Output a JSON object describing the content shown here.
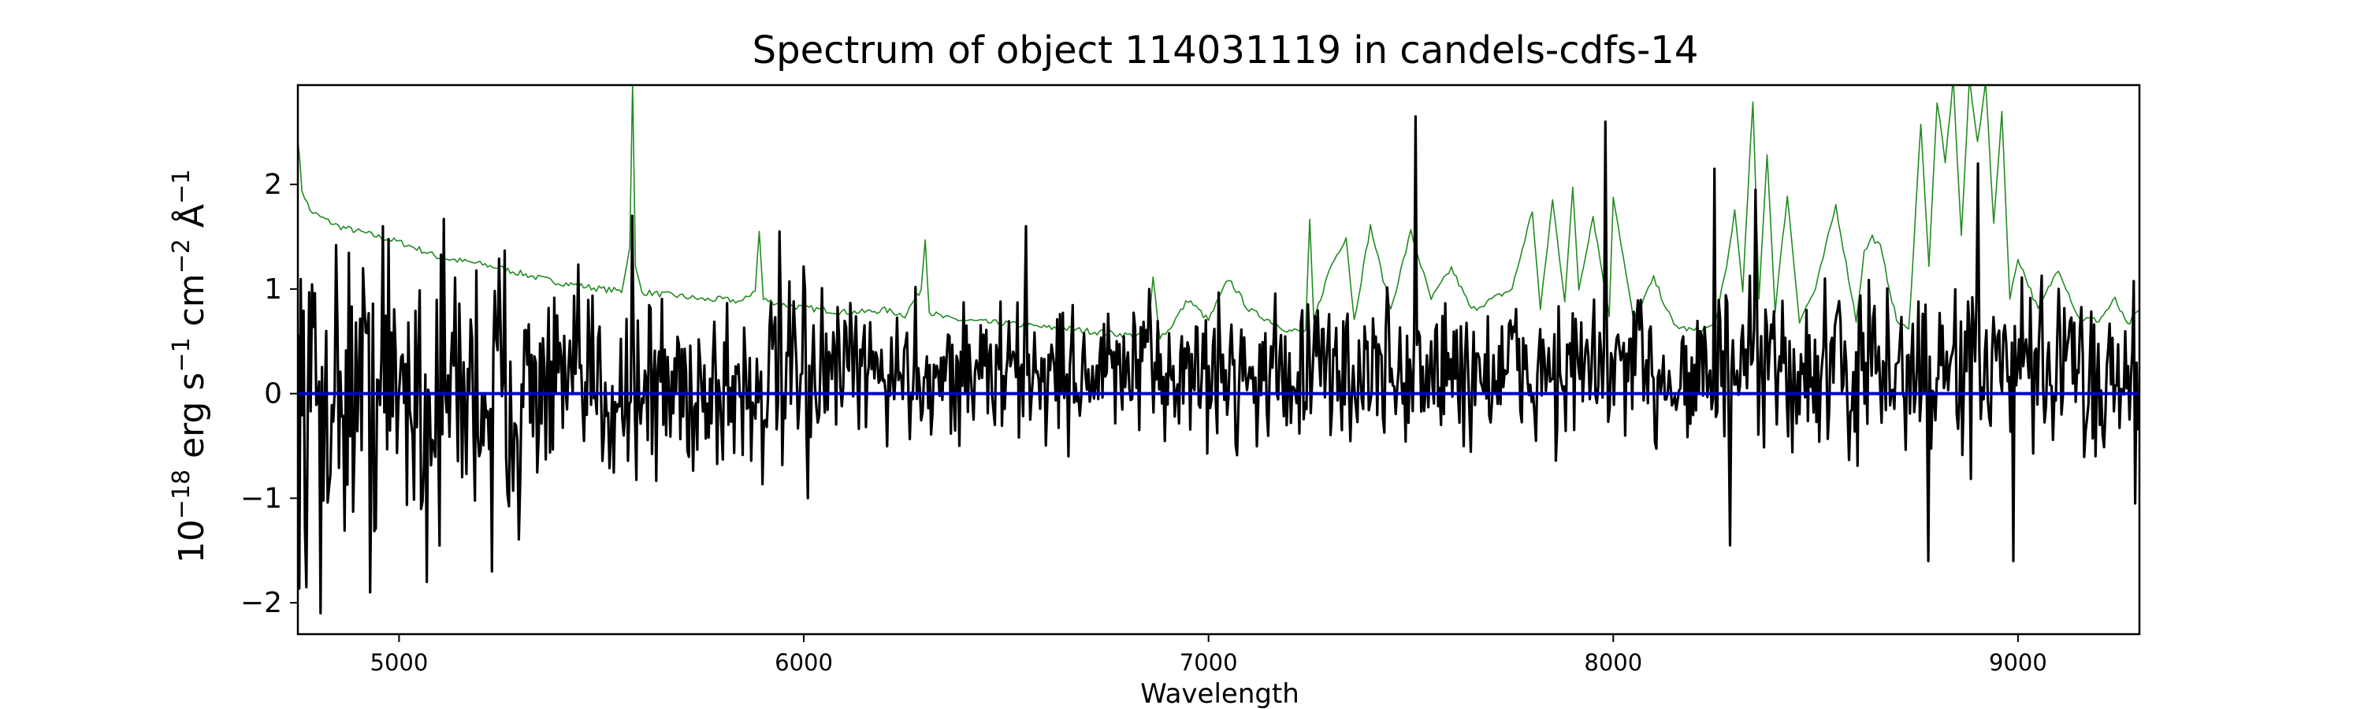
{
  "chart_data": {
    "type": "line",
    "title": "Spectrum of object 114031119 in candels-cdfs-14",
    "xlabel": "Wavelength",
    "ylabel_base": "10",
    "ylabel_exp": "−18",
    "ylabel_unit1": " erg s",
    "ylabel_unit1_exp": "−1",
    "ylabel_unit2": " cm",
    "ylabel_unit2_exp": "−2",
    "ylabel_unit3": " Å",
    "ylabel_unit3_exp": "−1",
    "xlim": [
      4750,
      9300
    ],
    "ylim": [
      -2.3,
      2.95
    ],
    "xticks": [
      5000,
      6000,
      7000,
      8000,
      9000
    ],
    "xtick_labels": [
      "5000",
      "6000",
      "7000",
      "8000",
      "9000"
    ],
    "yticks": [
      -2,
      -1,
      0,
      1,
      2
    ],
    "ytick_labels": [
      "−2",
      "−1",
      "0",
      "1",
      "2"
    ],
    "grid": false,
    "series": [
      {
        "role": "noise",
        "color": "#228B22",
        "stroke_width": 1.6,
        "x": [
          4750,
          4760,
          4780,
          4800,
          4850,
          4900,
          4950,
          5000,
          5050,
          5100,
          5150,
          5200,
          5250,
          5300,
          5350,
          5400,
          5450,
          5500,
          5550,
          5570,
          5577,
          5584,
          5600,
          5650,
          5700,
          5750,
          5800,
          5850,
          5880,
          5890,
          5900,
          5950,
          6000,
          6050,
          6100,
          6150,
          6200,
          6250,
          6290,
          6300,
          6310,
          6350,
          6400,
          6450,
          6500,
          6550,
          6600,
          6650,
          6700,
          6750,
          6800,
          6850,
          6863,
          6880,
          6900,
          6950,
          7000,
          7050,
          7100,
          7150,
          7200,
          7240,
          7250,
          7260,
          7300,
          7340,
          7360,
          7400,
          7450,
          7500,
          7550,
          7600,
          7650,
          7700,
          7750,
          7800,
          7820,
          7850,
          7880,
          7900,
          7915,
          7950,
          7990,
          8000,
          8050,
          8100,
          8150,
          8200,
          8250,
          8280,
          8300,
          8320,
          8345,
          8360,
          8380,
          8400,
          8430,
          8460,
          8500,
          8550,
          8600,
          8620,
          8640,
          8660,
          8700,
          8730,
          8760,
          8780,
          8800,
          8820,
          8840,
          8860,
          8880,
          8900,
          8920,
          8940,
          8960,
          8980,
          9000,
          9050,
          9100,
          9150,
          9200,
          9240,
          9270,
          9300
        ],
        "y": [
          2.45,
          1.95,
          1.75,
          1.7,
          1.6,
          1.55,
          1.5,
          1.45,
          1.38,
          1.3,
          1.27,
          1.24,
          1.2,
          1.15,
          1.1,
          1.06,
          1.03,
          1.0,
          0.98,
          1.4,
          3.0,
          1.2,
          0.97,
          0.95,
          0.93,
          0.9,
          0.9,
          0.88,
          1.0,
          1.55,
          0.9,
          0.85,
          0.82,
          0.8,
          0.78,
          0.78,
          0.8,
          0.75,
          1.0,
          1.5,
          0.78,
          0.72,
          0.7,
          0.68,
          0.67,
          0.65,
          0.63,
          0.62,
          0.6,
          0.58,
          0.56,
          0.55,
          1.1,
          0.55,
          0.6,
          0.9,
          0.7,
          1.1,
          0.8,
          0.7,
          0.6,
          0.6,
          1.65,
          0.7,
          1.2,
          1.5,
          0.7,
          1.6,
          0.8,
          1.55,
          0.9,
          1.2,
          0.8,
          0.9,
          1.0,
          1.75,
          0.8,
          1.85,
          0.9,
          1.95,
          1.0,
          1.7,
          0.75,
          1.9,
          0.7,
          1.1,
          0.65,
          0.6,
          0.65,
          1.2,
          1.75,
          1.0,
          2.8,
          0.9,
          2.3,
          0.8,
          1.9,
          0.7,
          1.0,
          1.8,
          0.7,
          1.35,
          1.5,
          1.4,
          0.7,
          0.6,
          2.6,
          1.2,
          2.8,
          2.2,
          3.0,
          1.5,
          3.0,
          2.4,
          3.0,
          1.6,
          2.7,
          0.9,
          1.3,
          0.8,
          1.2,
          0.72,
          0.7,
          0.9,
          0.65,
          0.8
        ]
      },
      {
        "role": "model",
        "color": "#0000CC",
        "stroke_width": 4,
        "x": [
          4750,
          9300
        ],
        "y": [
          0.0,
          0.0
        ]
      },
      {
        "role": "flux",
        "color": "#000000",
        "stroke_width": 3.2,
        "generated_points": 1300,
        "peaks_x": [
          4770,
          4805,
          4960,
          5230,
          5575,
          5940,
          6550,
          7510,
          7980,
          8250,
          8350,
          8900,
          9100,
          9290
        ],
        "peaks_y": [
          -1.85,
          -2.1,
          1.6,
          -1.7,
          1.7,
          1.55,
          1.6,
          2.65,
          2.6,
          2.15,
          1.95,
          2.2,
          1.0,
          -1.05
        ],
        "dips_x": [
          4930,
          5070,
          6010,
          8290,
          8780,
          8990
        ],
        "dips_y": [
          -1.9,
          -1.8,
          -1.0,
          -1.45,
          -1.6,
          -1.6
        ]
      }
    ]
  }
}
